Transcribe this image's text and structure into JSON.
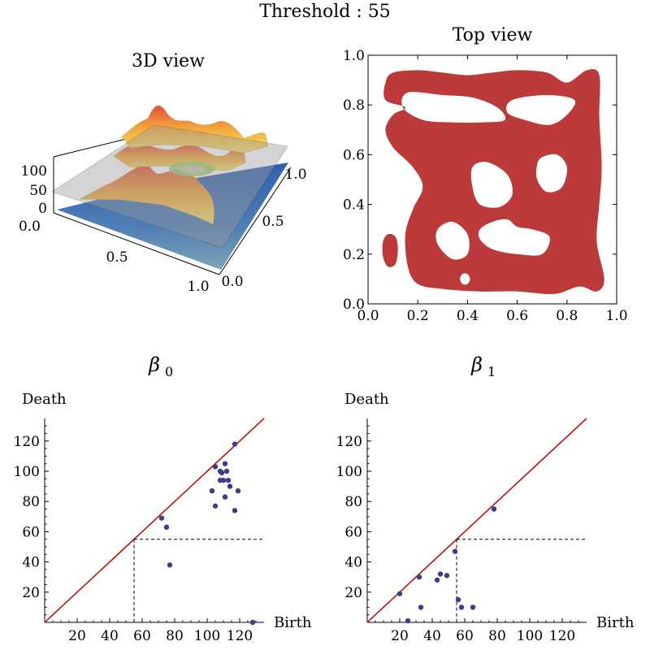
{
  "header": {
    "title": "Threshold : 55"
  },
  "panel_3d": {
    "title": "3D view",
    "ticks_z": [
      "100",
      "50",
      "0"
    ],
    "tick_corner": "0.0",
    "ticks_x": [
      "0.5",
      "1.0"
    ],
    "ticks_y": [
      "0.0",
      "0.5",
      "1.0"
    ]
  },
  "colors": {
    "region": "#bc3a3a",
    "diagonal": "#cc0000",
    "point": "#3c3c8c"
  },
  "chart_data": [
    {
      "type": "region",
      "title": "Top view",
      "xlim": [
        0,
        1
      ],
      "ylim": [
        0,
        1
      ],
      "xticks": [
        "0.0",
        "0.2",
        "0.4",
        "0.6",
        "0.8",
        "1.0"
      ],
      "yticks": [
        "0.0",
        "0.2",
        "0.4",
        "0.6",
        "0.8",
        "1.0"
      ],
      "outline": [
        [
          0.07,
          0.89
        ],
        [
          0.1,
          0.93
        ],
        [
          0.2,
          0.94
        ],
        [
          0.3,
          0.93
        ],
        [
          0.4,
          0.92
        ],
        [
          0.5,
          0.93
        ],
        [
          0.6,
          0.94
        ],
        [
          0.72,
          0.93
        ],
        [
          0.8,
          0.89
        ],
        [
          0.88,
          0.94
        ],
        [
          0.93,
          0.92
        ],
        [
          0.93,
          0.75
        ],
        [
          0.94,
          0.55
        ],
        [
          0.93,
          0.4
        ],
        [
          0.92,
          0.25
        ],
        [
          0.95,
          0.1
        ],
        [
          0.92,
          0.05
        ],
        [
          0.85,
          0.07
        ],
        [
          0.75,
          0.04
        ],
        [
          0.6,
          0.05
        ],
        [
          0.45,
          0.05
        ],
        [
          0.3,
          0.06
        ],
        [
          0.2,
          0.08
        ],
        [
          0.16,
          0.15
        ],
        [
          0.15,
          0.28
        ],
        [
          0.18,
          0.38
        ],
        [
          0.22,
          0.47
        ],
        [
          0.18,
          0.55
        ],
        [
          0.1,
          0.63
        ],
        [
          0.07,
          0.7
        ],
        [
          0.1,
          0.76
        ],
        [
          0.15,
          0.79
        ],
        [
          0.07,
          0.82
        ]
      ],
      "holes": [
        [
          [
            0.16,
            0.85
          ],
          [
            0.3,
            0.84
          ],
          [
            0.42,
            0.83
          ],
          [
            0.52,
            0.79
          ],
          [
            0.55,
            0.74
          ],
          [
            0.46,
            0.73
          ],
          [
            0.34,
            0.73
          ],
          [
            0.22,
            0.74
          ],
          [
            0.14,
            0.79
          ]
        ],
        [
          [
            0.58,
            0.82
          ],
          [
            0.72,
            0.84
          ],
          [
            0.83,
            0.82
          ],
          [
            0.8,
            0.76
          ],
          [
            0.73,
            0.72
          ],
          [
            0.63,
            0.74
          ],
          [
            0.56,
            0.77
          ]
        ],
        [
          [
            0.48,
            0.57
          ],
          [
            0.56,
            0.52
          ],
          [
            0.58,
            0.44
          ],
          [
            0.53,
            0.39
          ],
          [
            0.45,
            0.4
          ],
          [
            0.42,
            0.47
          ],
          [
            0.42,
            0.55
          ]
        ],
        [
          [
            0.7,
            0.59
          ],
          [
            0.76,
            0.6
          ],
          [
            0.8,
            0.55
          ],
          [
            0.78,
            0.47
          ],
          [
            0.72,
            0.45
          ],
          [
            0.68,
            0.5
          ],
          [
            0.68,
            0.56
          ]
        ],
        [
          [
            0.5,
            0.33
          ],
          [
            0.56,
            0.34
          ],
          [
            0.6,
            0.31
          ],
          [
            0.66,
            0.3
          ],
          [
            0.73,
            0.27
          ],
          [
            0.7,
            0.2
          ],
          [
            0.6,
            0.2
          ],
          [
            0.5,
            0.22
          ],
          [
            0.45,
            0.26
          ],
          [
            0.45,
            0.3
          ]
        ],
        [
          [
            0.34,
            0.33
          ],
          [
            0.4,
            0.28
          ],
          [
            0.4,
            0.2
          ],
          [
            0.34,
            0.18
          ],
          [
            0.28,
            0.24
          ],
          [
            0.28,
            0.3
          ]
        ],
        [
          [
            0.38,
            0.12
          ],
          [
            0.4,
            0.12
          ],
          [
            0.41,
            0.1
          ],
          [
            0.4,
            0.08
          ],
          [
            0.38,
            0.08
          ],
          [
            0.37,
            0.1
          ]
        ]
      ],
      "islands": [
        [
          [
            0.08,
            0.28
          ],
          [
            0.11,
            0.27
          ],
          [
            0.12,
            0.22
          ],
          [
            0.11,
            0.16
          ],
          [
            0.08,
            0.15
          ],
          [
            0.06,
            0.19
          ],
          [
            0.06,
            0.25
          ]
        ]
      ]
    },
    {
      "type": "scatter",
      "title": "β",
      "subscript": "0",
      "xlabel": "Birth",
      "ylabel": "Death",
      "xlim": [
        0,
        135
      ],
      "ylim": [
        0,
        135
      ],
      "xticks": [
        20,
        40,
        60,
        80,
        100,
        120
      ],
      "yticks": [
        20,
        40,
        60,
        80,
        100,
        120
      ],
      "threshold": 55,
      "points": [
        [
          72,
          69
        ],
        [
          75,
          63
        ],
        [
          77,
          38
        ],
        [
          103,
          87
        ],
        [
          105,
          103
        ],
        [
          105,
          77
        ],
        [
          108,
          94
        ],
        [
          108,
          100
        ],
        [
          109,
          99
        ],
        [
          110,
          94
        ],
        [
          111,
          105
        ],
        [
          111,
          83
        ],
        [
          112,
          100
        ],
        [
          113,
          94
        ],
        [
          114,
          90
        ],
        [
          117,
          118
        ],
        [
          117,
          74
        ],
        [
          119,
          87
        ],
        [
          128,
          0
        ]
      ]
    },
    {
      "type": "scatter",
      "title": "β",
      "subscript": "1",
      "xlabel": "Birth",
      "ylabel": "Death",
      "xlim": [
        0,
        135
      ],
      "ylim": [
        0,
        135
      ],
      "xticks": [
        20,
        40,
        60,
        80,
        100,
        120
      ],
      "yticks": [
        20,
        40,
        60,
        80,
        100,
        120
      ],
      "threshold": 55,
      "points": [
        [
          20,
          19
        ],
        [
          25,
          1
        ],
        [
          32,
          30
        ],
        [
          33,
          10
        ],
        [
          43,
          28
        ],
        [
          45,
          32
        ],
        [
          49,
          31
        ],
        [
          54,
          47
        ],
        [
          56,
          15
        ],
        [
          58,
          10
        ],
        [
          65,
          10
        ],
        [
          78,
          75
        ]
      ]
    }
  ]
}
